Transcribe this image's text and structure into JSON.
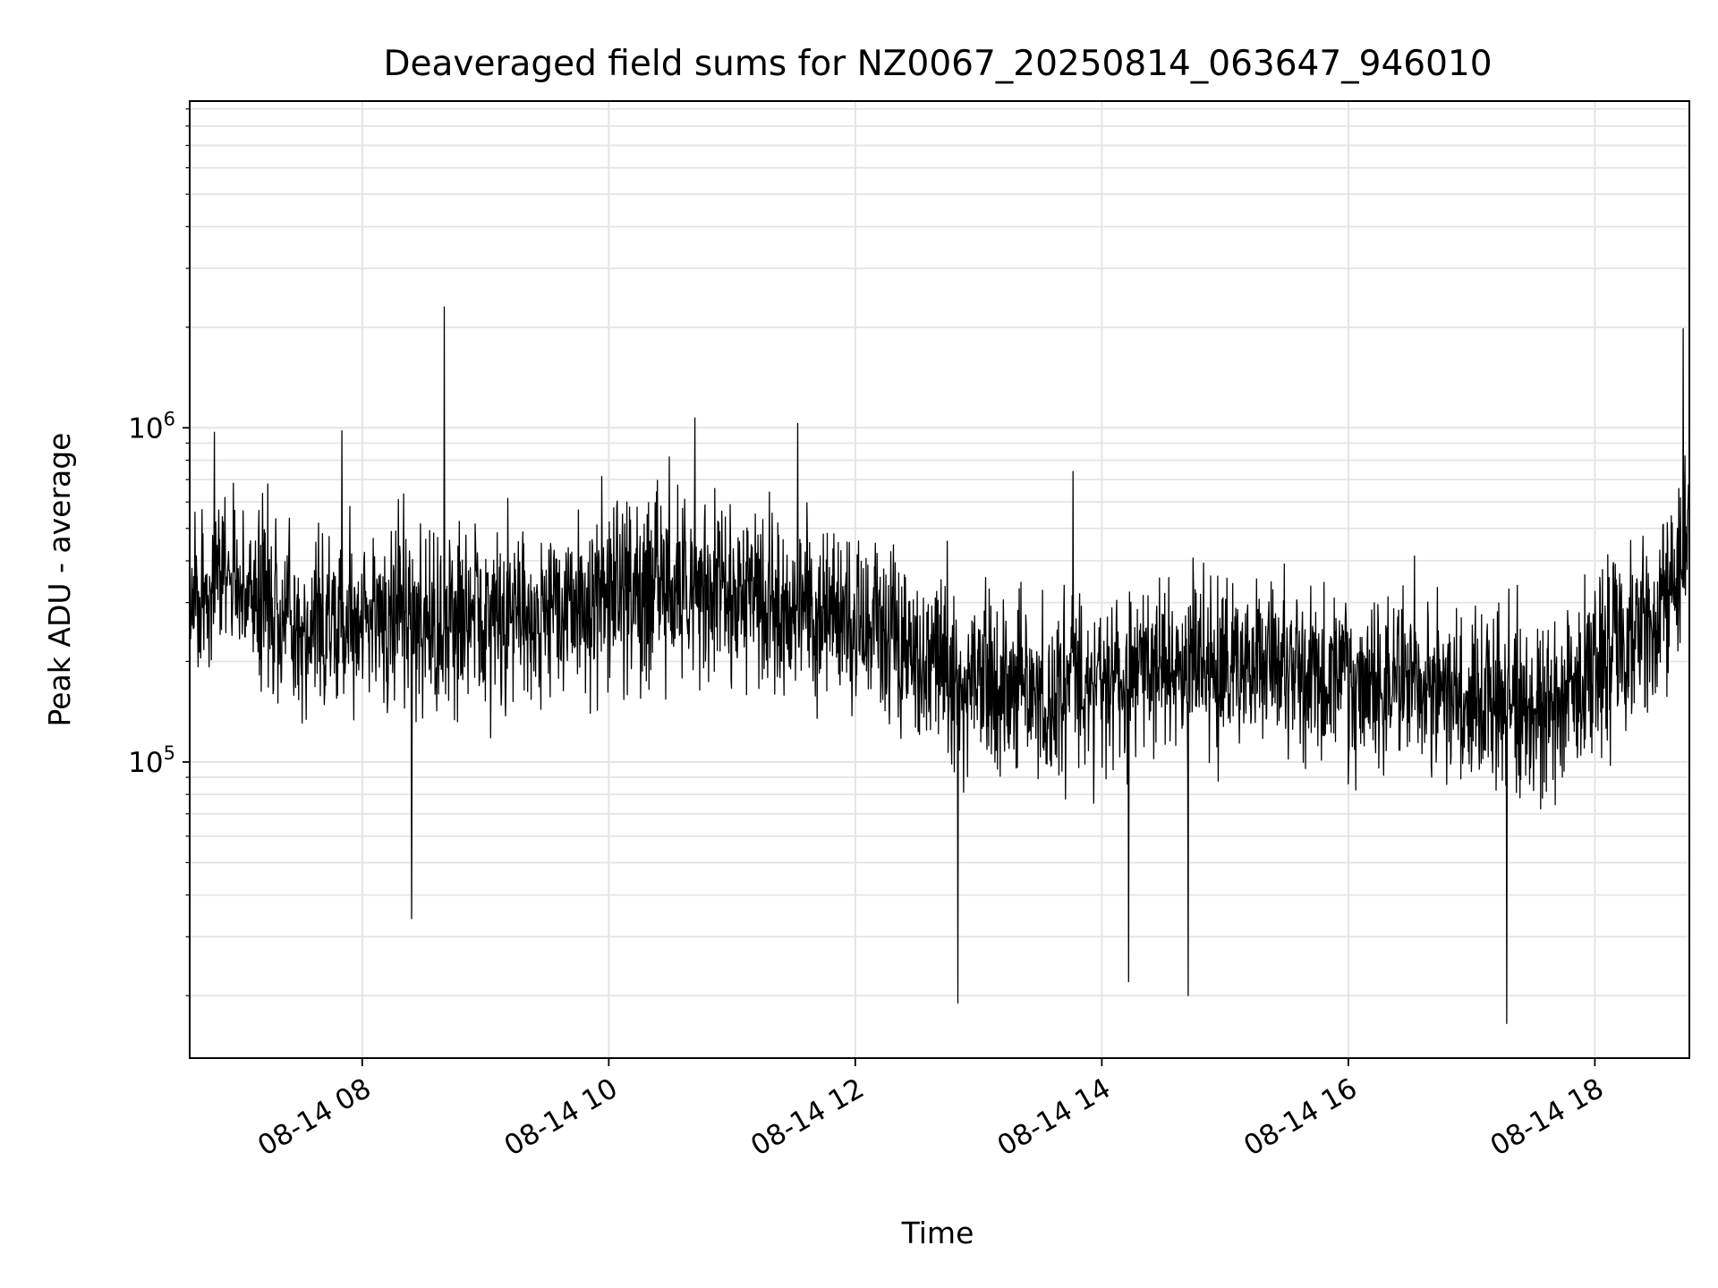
{
  "chart_data": {
    "type": "line",
    "title": "Deaveraged field sums for NZ0067_20250814_063647_946010",
    "xlabel": "Time",
    "ylabel": "Peak ADU - average",
    "yscale": "log",
    "ylim": [
      13000,
      9500000
    ],
    "xlim": [
      "2025-08-14 06:36",
      "2025-08-14 18:46"
    ],
    "x_ticks": [
      "08-14 08",
      "08-14 10",
      "08-14 12",
      "08-14 14",
      "08-14 16",
      "08-14 18"
    ],
    "y_ticks": [
      {
        "base": "10",
        "exp": "5",
        "value": 100000
      },
      {
        "base": "10",
        "exp": "6",
        "value": 1000000
      }
    ],
    "grid": true,
    "line_color": "#000000",
    "series": [
      {
        "x": [
          "2025-08-14 06:36",
          "2025-08-14 07:00",
          "2025-08-14 07:30",
          "2025-08-14 08:00",
          "2025-08-14 08:30",
          "2025-08-14 09:00",
          "2025-08-14 09:30",
          "2025-08-14 10:00",
          "2025-08-14 10:30",
          "2025-08-14 11:00",
          "2025-08-14 11:30",
          "2025-08-14 12:00",
          "2025-08-14 12:30",
          "2025-08-14 13:00",
          "2025-08-14 13:30",
          "2025-08-14 14:00",
          "2025-08-14 14:30",
          "2025-08-14 15:00",
          "2025-08-14 15:30",
          "2025-08-14 16:00",
          "2025-08-14 16:30",
          "2025-08-14 17:00",
          "2025-08-14 17:30",
          "2025-08-14 18:00",
          "2025-08-14 18:30",
          "2025-08-14 18:46"
        ],
        "values": [
          300000,
          350000,
          250000,
          260000,
          270000,
          270000,
          280000,
          300000,
          330000,
          310000,
          290000,
          260000,
          200000,
          170000,
          150000,
          180000,
          190000,
          200000,
          190000,
          180000,
          170000,
          160000,
          140000,
          200000,
          260000,
          500000
        ],
        "spikes": [
          {
            "x": "2025-08-14 08:40",
            "value": 2300000
          },
          {
            "x": "2025-08-14 07:50",
            "value": 980000
          },
          {
            "x": "2025-08-14 06:48",
            "value": 970000
          },
          {
            "x": "2025-08-14 10:42",
            "value": 1070000
          },
          {
            "x": "2025-08-14 11:32",
            "value": 1030000
          },
          {
            "x": "2025-08-14 13:46",
            "value": 740000
          },
          {
            "x": "2025-08-14 18:43",
            "value": 1980000
          },
          {
            "x": "2025-08-14 12:50",
            "value": 19000
          },
          {
            "x": "2025-08-14 17:17",
            "value": 16500
          },
          {
            "x": "2025-08-14 14:42",
            "value": 20000
          },
          {
            "x": "2025-08-14 14:13",
            "value": 22000
          },
          {
            "x": "2025-08-14 08:24",
            "value": 34000
          }
        ]
      }
    ]
  }
}
